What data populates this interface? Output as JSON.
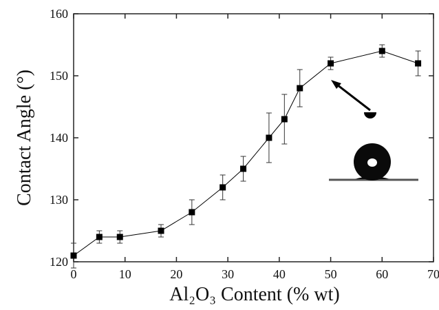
{
  "chart_data": {
    "type": "line",
    "xlabel": "Al₂O₃ Content (% wt)",
    "ylabel": "Contact Angle (°)",
    "series": [
      {
        "name": "Contact angle",
        "color": "#000000",
        "x": [
          0,
          5,
          9,
          17,
          23,
          29,
          33,
          38,
          41,
          44,
          50,
          60,
          67
        ],
        "values": [
          121,
          124,
          124,
          125,
          128,
          132,
          135,
          140,
          143,
          148,
          152,
          154,
          152
        ],
        "errors": [
          2,
          1,
          1,
          1,
          2,
          2,
          2,
          4,
          4,
          3,
          1,
          1,
          2
        ]
      }
    ],
    "xlim": [
      0,
      70
    ],
    "xticks": [
      0,
      10,
      20,
      30,
      40,
      50,
      60,
      70
    ],
    "ylim": [
      120,
      160
    ],
    "yticks": [
      120,
      130,
      140,
      150,
      160
    ],
    "grid": false
  }
}
